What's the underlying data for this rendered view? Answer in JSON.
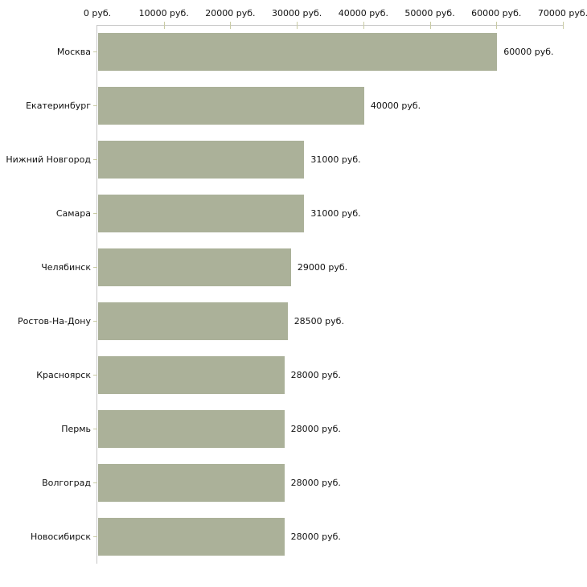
{
  "chart_data": {
    "type": "bar",
    "orientation": "horizontal",
    "title": "",
    "categories": [
      "Москва",
      "Екатеринбург",
      "Нижний Новгород",
      "Самара",
      "Челябинск",
      "Ростов-На-Дону",
      "Красноярск",
      "Пермь",
      "Волгоград",
      "Новосибирск"
    ],
    "values": [
      60000,
      40000,
      31000,
      31000,
      29000,
      28500,
      28000,
      28000,
      28000,
      28000
    ],
    "value_labels": [
      "60000 руб.",
      "40000 руб.",
      "31000 руб.",
      "31000 руб.",
      "29000 руб.",
      "28500 руб.",
      "28000 руб.",
      "28000 руб.",
      "28000 руб.",
      "28000 руб."
    ],
    "x_axis": {
      "position": "top",
      "min": 0,
      "max": 70000,
      "ticks": [
        0,
        10000,
        20000,
        30000,
        40000,
        50000,
        60000,
        70000
      ],
      "tick_labels": [
        "0 руб.",
        "10000 руб.",
        "20000 руб.",
        "30000 руб.",
        "40000 руб.",
        "50000 руб.",
        "60000 руб.",
        "70000 руб."
      ]
    },
    "grid": false,
    "legend": false,
    "colors": {
      "bar": "#abb199",
      "axis_line": "#c6c6c6",
      "tick_mark": "#c9cba4",
      "text": "#111111",
      "background": "#ffffff"
    }
  }
}
